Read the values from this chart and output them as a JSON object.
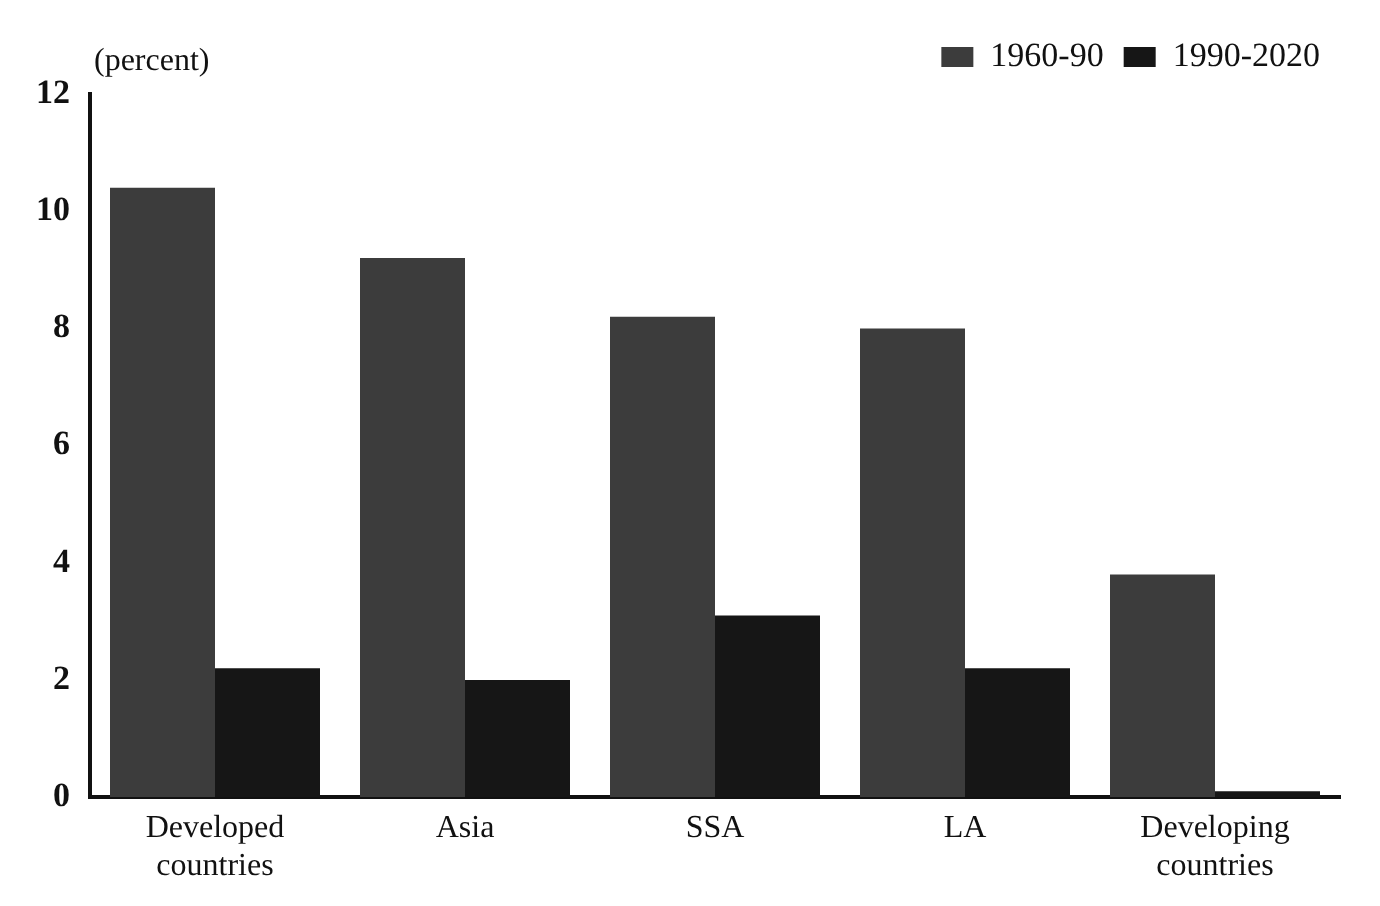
{
  "chart_data": {
    "type": "bar",
    "ylabel": "(percent)",
    "categories": [
      "Developed\ncountries",
      "Asia",
      "SSA",
      "LA",
      "Developing\ncountries"
    ],
    "series": [
      {
        "name": "1960-90",
        "color": "#3c3c3c",
        "values": [
          10.4,
          9.2,
          8.2,
          8.0,
          3.8
        ]
      },
      {
        "name": "1990-2020",
        "color": "#161616",
        "values": [
          2.2,
          2.0,
          3.1,
          2.2,
          0.1
        ]
      }
    ],
    "ylim": [
      0,
      12
    ],
    "yticks": [
      0,
      2,
      4,
      6,
      8,
      10,
      12
    ],
    "grid": false,
    "legend": "top right"
  }
}
